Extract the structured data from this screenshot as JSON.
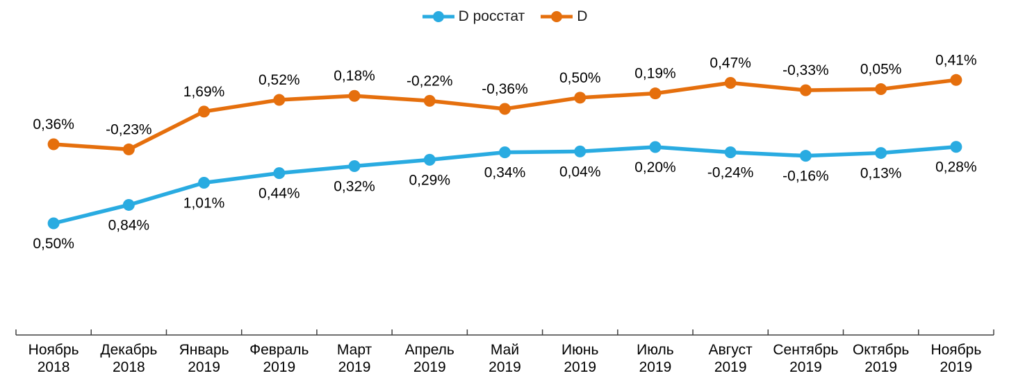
{
  "chart_data": {
    "type": "line",
    "categories": [
      "Ноябрь 2018",
      "Декабрь 2018",
      "Январь 2019",
      "Февраль 2019",
      "Март 2019",
      "Апрель 2019",
      "Май 2019",
      "Июнь 2019",
      "Июль 2019",
      "Август 2019",
      "Сентябрь 2019",
      "Октябрь 2019",
      "Ноябрь 2019"
    ],
    "series": [
      {
        "name": "D росстат",
        "color": "#29ABE1",
        "values": [
          0.5,
          0.84,
          1.01,
          0.44,
          0.32,
          0.29,
          0.34,
          0.04,
          0.2,
          -0.24,
          -0.16,
          0.13,
          0.28
        ],
        "labels": [
          "0,50%",
          "0,84%",
          "1,01%",
          "0,44%",
          "0,32%",
          "0,29%",
          "0,34%",
          "0,04%",
          "0,20%",
          "-0,24%",
          "-0,16%",
          "0,13%",
          "0,28%"
        ],
        "label_side": "below"
      },
      {
        "name": "D",
        "color": "#E56F0D",
        "values": [
          0.36,
          -0.23,
          1.69,
          0.52,
          0.18,
          -0.22,
          -0.36,
          0.5,
          0.19,
          0.47,
          -0.33,
          0.05,
          0.41
        ],
        "labels": [
          "0,36%",
          "-0,23%",
          "1,69%",
          "0,52%",
          "0,18%",
          "-0,22%",
          "-0,36%",
          "0,50%",
          "0,19%",
          "0,47%",
          "-0,33%",
          "0,05%",
          "0,41%"
        ],
        "label_side": "above"
      }
    ],
    "xlabel": "",
    "ylabel": "",
    "grid": false,
    "legend_position": "top-center",
    "layout_hint": "lines trace the cumulative sum of the monthly values; data labels show the monthly values"
  }
}
